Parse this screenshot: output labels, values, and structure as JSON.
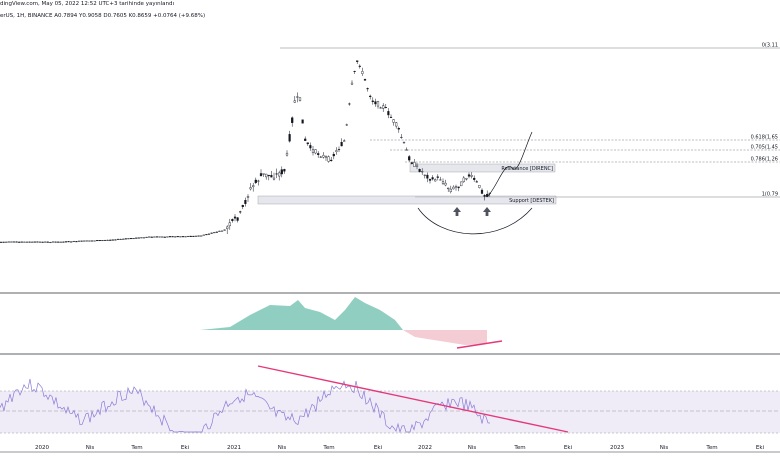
{
  "header": {
    "line1": "dingView.com, May 05, 2022 12:52 UTC+3 tarihinde yayınlandı",
    "line2": "erUS, 1H, BINANCE A0.7894 Y0.9058 D0.7605 K0.8659 +0.0764 (+9.68%)"
  },
  "colors": {
    "candle": "#131722",
    "macd_pos": "#7cc5b6",
    "macd_neg": "#f2c6cf",
    "rsi_line": "#8b7ad8",
    "rsi_band": "#e9e4f3",
    "trendline": "#e5387a",
    "fib_line": "#787b86",
    "zone": "#d1d4dc",
    "arrow": "#50535e"
  },
  "chart_data": [
    {
      "type": "candlestick",
      "x_ticks": [
        "2020",
        "Nis",
        "Tem",
        "Eki",
        "2021",
        "Nis",
        "Tem",
        "Eki",
        "2022",
        "Nis",
        "Tem",
        "Eki",
        "2023",
        "Nis",
        "Tem",
        "Eki"
      ],
      "fib_levels": [
        {
          "ratio": "0",
          "label": "0(3.11"
        },
        {
          "ratio": "0.618",
          "label": "0.618(1.65"
        },
        {
          "ratio": "0.705",
          "label": "0.705(1.45"
        },
        {
          "ratio": "0.786",
          "label": "0.786(1.26"
        },
        {
          "ratio": "1",
          "label": "1(0.79"
        }
      ],
      "zones": [
        {
          "name": "Resistance",
          "label": "Resistance [DIRENC]"
        },
        {
          "name": "Support",
          "label": "Support [DESTEK]"
        }
      ],
      "annotations": [
        "projection-curve",
        "rounded-bottom-arc",
        "up-arrow",
        "up-arrow"
      ]
    },
    {
      "type": "area",
      "name": "histogram",
      "annotations": [
        "rising-trendline"
      ]
    },
    {
      "type": "line",
      "name": "oscillator",
      "band": true,
      "annotations": [
        "falling-trendline"
      ]
    }
  ]
}
